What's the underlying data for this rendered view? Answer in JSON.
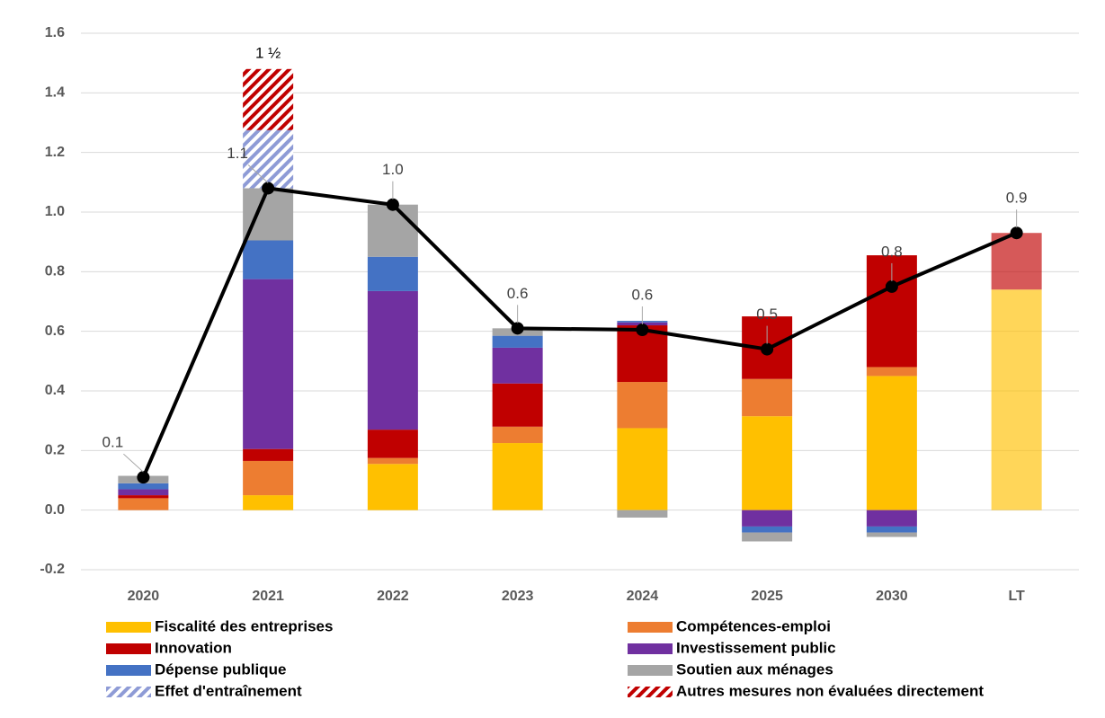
{
  "chart_data": {
    "type": "bar",
    "categories": [
      "2020",
      "2021",
      "2022",
      "2023",
      "2024",
      "2025",
      "2030",
      "LT"
    ],
    "ylim": [
      -0.2,
      1.6
    ],
    "yticks": [
      -0.2,
      {
        "value": 0,
        "label": "0.0"
      },
      0.2,
      0.4,
      0.6,
      0.8,
      {
        "value": 1,
        "label": "1.0"
      },
      1.2,
      1.4,
      1.6
    ],
    "grid": true,
    "series": [
      {
        "name": "Fiscalité des entreprises",
        "color": "#ffc000",
        "values": [
          0,
          0.05,
          0.155,
          0.225,
          0.275,
          0.315,
          0.45,
          0.74
        ]
      },
      {
        "name": "Compétences-emploi",
        "color": "#ed7d31",
        "values": [
          0.04,
          0.115,
          0.02,
          0.055,
          0.155,
          0.125,
          0.03,
          null
        ]
      },
      {
        "name": "Innovation",
        "color": "#c00000",
        "values": [
          0.01,
          0.04,
          0.095,
          0.145,
          0.19,
          0.21,
          0.375,
          0.19
        ]
      },
      {
        "name": "Investissement public",
        "color": "#7030a0",
        "values": [
          0.02,
          0.57,
          0.465,
          0.12,
          0.01,
          -0.055,
          -0.055,
          null
        ]
      },
      {
        "name": "Dépense publique",
        "color": "#4472c4",
        "values": [
          0.02,
          0.13,
          0.115,
          0.04,
          0.005,
          -0.02,
          -0.02,
          null
        ]
      },
      {
        "name": "Soutien aux ménages",
        "color": "#a5a5a5",
        "values": [
          0.025,
          0.175,
          0.175,
          0.025,
          -0.025,
          -0.03,
          -0.015,
          null
        ]
      },
      {
        "name": "Effet d'entraînement",
        "color": "#8e9bd6",
        "pattern": "hatch",
        "values": [
          null,
          0.195,
          null,
          null,
          null,
          null,
          null,
          null
        ]
      },
      {
        "name": "Autres mesures non évaluées directement",
        "color": "#c00000",
        "pattern": "hatch",
        "values": [
          null,
          0.205,
          null,
          null,
          null,
          null,
          null,
          null
        ]
      }
    ],
    "line": {
      "color": "#000000",
      "values": [
        0.11,
        1.08,
        1.025,
        0.61,
        0.605,
        0.54,
        0.75,
        0.93
      ],
      "value_labels": [
        "0.1",
        "1.1",
        "1.0",
        "0.6",
        "0.6",
        "0.5",
        "0.8",
        "0.9"
      ]
    },
    "annotations": [
      {
        "label": "1 ½",
        "value": 1.5
      }
    ]
  }
}
